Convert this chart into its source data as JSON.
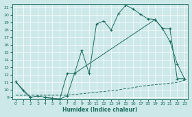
{
  "xlabel": "Humidex (Indice chaleur)",
  "bg_color": "#cde8e8",
  "line_color": "#1a6b5e",
  "xlim": [
    -0.5,
    23.5
  ],
  "ylim": [
    8.8,
    21.5
  ],
  "yticks": [
    9,
    10,
    11,
    12,
    13,
    14,
    15,
    16,
    17,
    18,
    19,
    20,
    21
  ],
  "xticks": [
    0,
    1,
    2,
    3,
    4,
    5,
    6,
    7,
    8,
    9,
    10,
    11,
    12,
    13,
    14,
    15,
    16,
    17,
    18,
    19,
    20,
    21,
    22,
    23
  ],
  "line1_x": [
    0,
    1,
    2,
    3,
    4,
    5,
    6,
    7,
    8,
    9,
    10,
    11,
    12,
    13,
    14,
    15,
    16,
    17,
    18,
    19,
    20,
    21,
    22,
    23
  ],
  "line1_y": [
    11.1,
    9.9,
    9.0,
    9.2,
    9.0,
    8.9,
    8.8,
    9.2,
    12.2,
    15.3,
    12.2,
    18.8,
    19.2,
    18.0,
    20.2,
    21.3,
    20.8,
    20.1,
    19.5,
    19.4,
    18.2,
    16.5,
    13.5,
    11.5
  ],
  "line2_x": [
    0,
    2,
    3,
    4,
    5,
    6,
    7,
    8,
    19,
    20,
    21,
    22,
    23
  ],
  "line2_y": [
    11.1,
    9.0,
    9.2,
    9.0,
    8.9,
    8.8,
    12.2,
    12.2,
    19.4,
    18.2,
    18.2,
    11.5,
    11.5
  ],
  "line3_x": [
    0,
    1,
    2,
    3,
    4,
    5,
    6,
    7,
    8,
    9,
    10,
    11,
    12,
    13,
    14,
    15,
    16,
    17,
    18,
    19,
    20,
    21,
    22,
    23
  ],
  "line3_y": [
    9.3,
    9.3,
    9.3,
    9.3,
    9.3,
    9.3,
    9.3,
    9.3,
    9.4,
    9.5,
    9.6,
    9.7,
    9.8,
    9.9,
    10.0,
    10.2,
    10.3,
    10.5,
    10.6,
    10.7,
    10.8,
    10.9,
    11.0,
    11.3
  ]
}
